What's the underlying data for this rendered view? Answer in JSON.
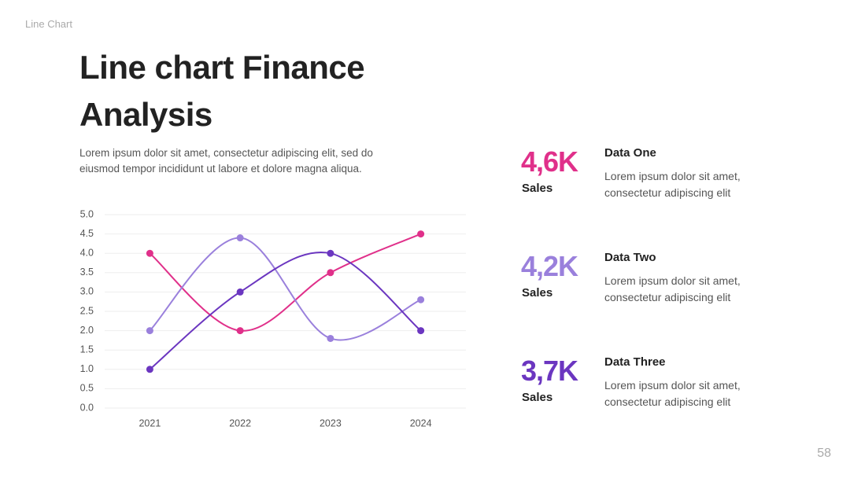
{
  "header": {
    "section": "Line Chart",
    "title": "Line chart Finance Analysis",
    "description": "Lorem ipsum dolor sit amet, consectetur adipiscing elit, sed do eiusmod tempor incididunt ut labore et dolore magna aliqua.",
    "page_number": "58"
  },
  "chart_data": {
    "type": "line",
    "categories": [
      "2021",
      "2022",
      "2023",
      "2024"
    ],
    "series": [
      {
        "color": "#e0308a",
        "values": [
          4,
          2,
          3.5,
          4.5
        ]
      },
      {
        "color": "#9a80dc",
        "values": [
          2,
          4.4,
          1.8,
          2.8
        ]
      },
      {
        "color": "#6b36c0",
        "values": [
          1,
          3,
          4,
          2
        ]
      }
    ],
    "ylim": [
      0,
      5
    ],
    "yticks": [
      {
        "value": 0,
        "label": "0.0"
      },
      0.5,
      {
        "value": 1,
        "label": "1.0"
      },
      1.5,
      {
        "value": 2,
        "label": "2.0"
      },
      2.5,
      {
        "value": 3,
        "label": "3.0"
      },
      3.5,
      {
        "value": 4,
        "label": "4.0"
      },
      4.5,
      {
        "value": 5,
        "label": "5.0"
      }
    ],
    "grid": true,
    "smooth": true
  },
  "stats": [
    {
      "value": "4,6K",
      "unit": "Sales",
      "color": "#e0308a",
      "title": "Data One",
      "text": "Lorem ipsum dolor sit amet, consectetur adipiscing elit"
    },
    {
      "value": "4,2K",
      "unit": "Sales",
      "color": "#9a80dc",
      "title": "Data Two",
      "text": "Lorem ipsum dolor sit amet, consectetur adipiscing elit"
    },
    {
      "value": "3,7K",
      "unit": "Sales",
      "color": "#6b36c0",
      "title": "Data Three",
      "text": "Lorem ipsum dolor sit amet, consectetur adipiscing elit"
    }
  ]
}
